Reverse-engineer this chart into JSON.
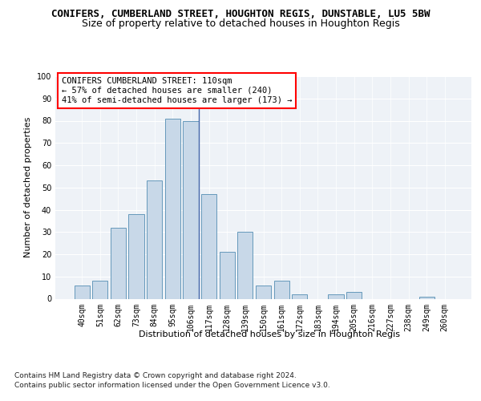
{
  "title1": "CONIFERS, CUMBERLAND STREET, HOUGHTON REGIS, DUNSTABLE, LU5 5BW",
  "title2": "Size of property relative to detached houses in Houghton Regis",
  "xlabel": "Distribution of detached houses by size in Houghton Regis",
  "ylabel": "Number of detached properties",
  "categories": [
    "40sqm",
    "51sqm",
    "62sqm",
    "73sqm",
    "84sqm",
    "95sqm",
    "106sqm",
    "117sqm",
    "128sqm",
    "139sqm",
    "150sqm",
    "161sqm",
    "172sqm",
    "183sqm",
    "194sqm",
    "205sqm",
    "216sqm",
    "227sqm",
    "238sqm",
    "249sqm",
    "260sqm"
  ],
  "values": [
    6,
    8,
    32,
    38,
    53,
    81,
    80,
    47,
    21,
    30,
    6,
    8,
    2,
    0,
    2,
    3,
    0,
    0,
    0,
    1,
    0
  ],
  "bar_color": "#c8d8e8",
  "bar_edge_color": "#6699bb",
  "highlight_index": 6,
  "annotation_box_text": "CONIFERS CUMBERLAND STREET: 110sqm\n← 57% of detached houses are smaller (240)\n41% of semi-detached houses are larger (173) →",
  "ylim": [
    0,
    100
  ],
  "yticks": [
    0,
    10,
    20,
    30,
    40,
    50,
    60,
    70,
    80,
    90,
    100
  ],
  "bg_color": "#eef2f7",
  "footer1": "Contains HM Land Registry data © Crown copyright and database right 2024.",
  "footer2": "Contains public sector information licensed under the Open Government Licence v3.0.",
  "title1_fontsize": 9,
  "title2_fontsize": 9,
  "axis_label_fontsize": 8,
  "tick_fontsize": 7,
  "annotation_fontsize": 7.5,
  "footer_fontsize": 6.5
}
